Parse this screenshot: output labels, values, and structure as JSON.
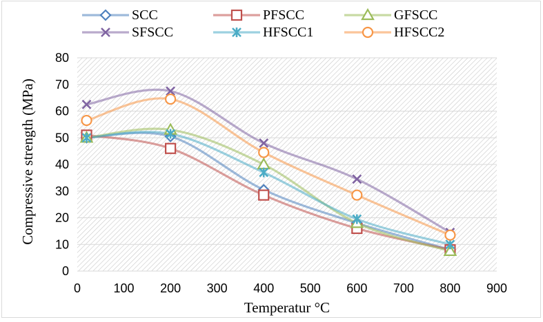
{
  "chart_data": {
    "type": "line",
    "smooth": true,
    "xlabel": "Temperatur °C",
    "ylabel": "Compressive  strength (MPa)",
    "xlim": [
      0,
      900
    ],
    "ylim": [
      0,
      80
    ],
    "xticks": [
      0,
      100,
      200,
      300,
      400,
      500,
      600,
      700,
      800,
      900
    ],
    "yticks": [
      0,
      10,
      20,
      30,
      40,
      50,
      60,
      70,
      80
    ],
    "grid": "horizontal",
    "plot_background": "diagonal hatch",
    "legend_position": "top",
    "x": [
      20,
      200,
      400,
      600,
      800
    ],
    "series": [
      {
        "name": "SCC",
        "values": [
          50,
          50.5,
          30.5,
          18,
          8
        ],
        "color": "#4f81bd",
        "marker": "diamond"
      },
      {
        "name": "PFSCC",
        "values": [
          51,
          46,
          28.5,
          16,
          8
        ],
        "color": "#c0504d",
        "marker": "square"
      },
      {
        "name": "GFSCC",
        "values": [
          50,
          53,
          40,
          18,
          7.5
        ],
        "color": "#9bbb59",
        "marker": "triangle"
      },
      {
        "name": "SFSCC",
        "values": [
          62.5,
          67.5,
          48,
          34.5,
          14.5
        ],
        "color": "#8064a2",
        "marker": "x"
      },
      {
        "name": "HFSCC1",
        "values": [
          50,
          51.5,
          37,
          19.5,
          10
        ],
        "color": "#4bacc6",
        "marker": "star"
      },
      {
        "name": "HFSCC2",
        "values": [
          56.5,
          64.5,
          44.5,
          28.5,
          13.5
        ],
        "color": "#f79646",
        "marker": "circle"
      }
    ]
  }
}
